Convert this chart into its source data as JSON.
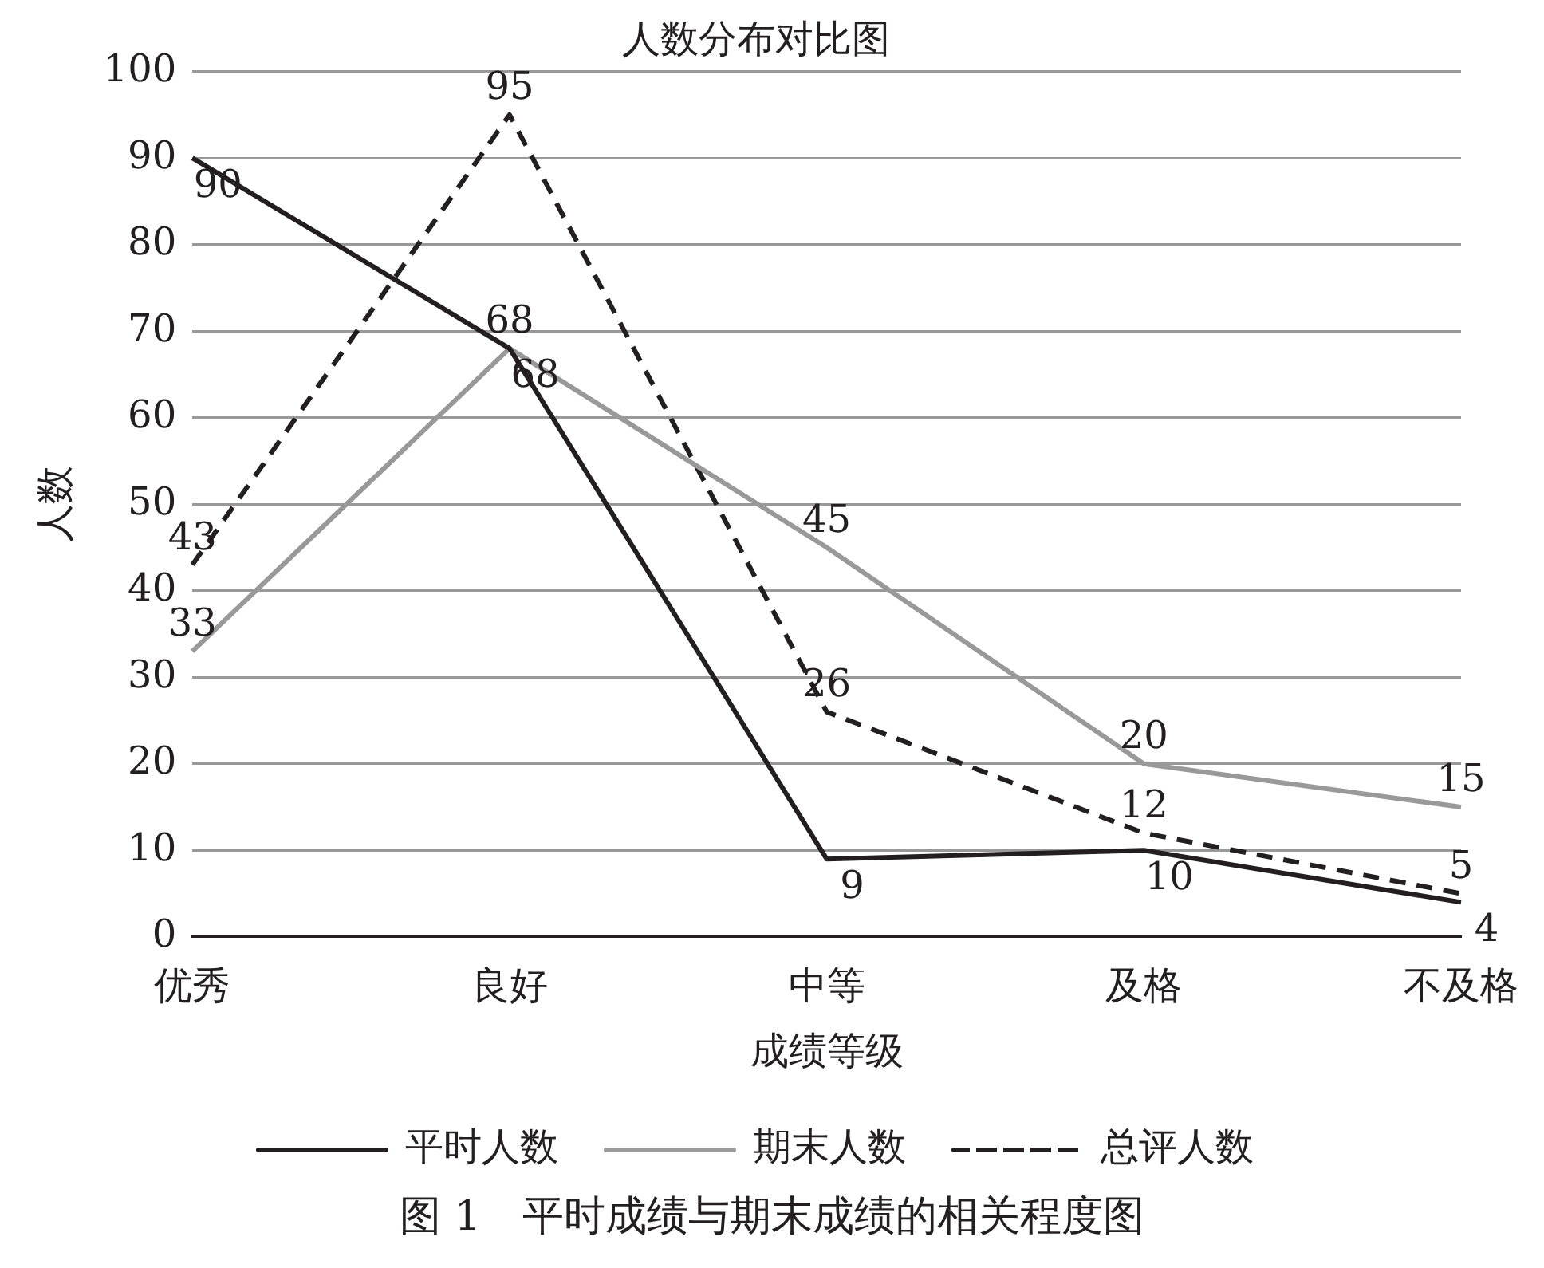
{
  "chart_data": {
    "type": "line",
    "title": "人数分布对比图",
    "xlabel": "成绩等级",
    "ylabel": "人数",
    "categories": [
      "优秀",
      "良好",
      "中等",
      "及格",
      "不及格"
    ],
    "series": [
      {
        "name": "平时人数",
        "color": "#231f20",
        "line_style": "solid",
        "values": [
          90,
          68,
          9,
          10,
          4
        ]
      },
      {
        "name": "期末人数",
        "color": "#999999",
        "line_style": "solid",
        "values": [
          33,
          68,
          45,
          20,
          15
        ]
      },
      {
        "name": "总评人数",
        "color": "#231f20",
        "line_style": "dashed",
        "values": [
          43,
          95,
          26,
          12,
          5
        ]
      }
    ],
    "ylim": [
      0,
      100
    ],
    "yticks": [
      0,
      10,
      20,
      30,
      40,
      50,
      60,
      70,
      80,
      90,
      100
    ],
    "grid": "y",
    "legend": "bottom",
    "marker": "none",
    "data_labels": true,
    "annotations": [
      "图 1　平时成绩与期末成绩的相关程度图"
    ]
  }
}
